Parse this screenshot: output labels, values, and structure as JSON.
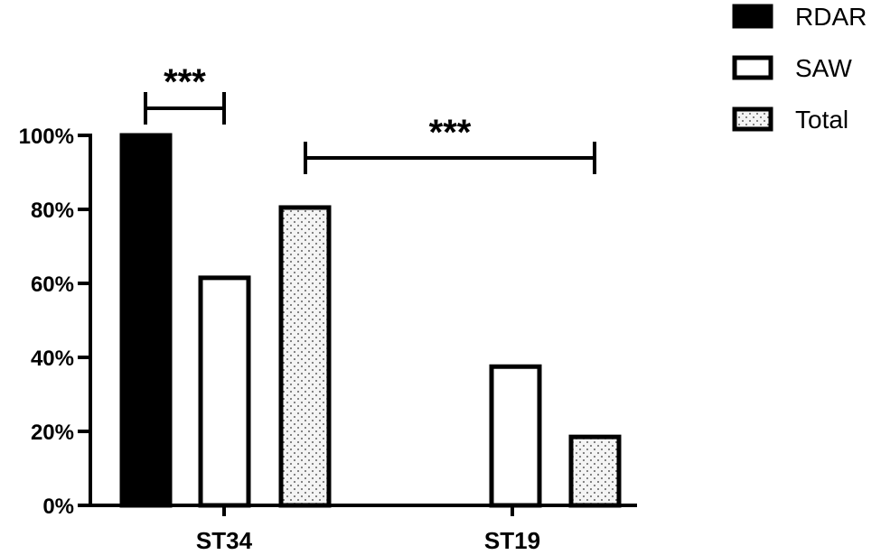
{
  "chart_data": {
    "type": "bar",
    "categories": [
      "ST34",
      "ST19"
    ],
    "series": [
      {
        "name": "RDAR",
        "values": [
          100,
          0
        ],
        "pattern": "solid"
      },
      {
        "name": "SAW",
        "values": [
          61.5,
          37.5
        ],
        "pattern": "empty"
      },
      {
        "name": "Total",
        "values": [
          80.5,
          18.5
        ],
        "pattern": "dots"
      }
    ],
    "y_ticks": [
      0,
      20,
      40,
      60,
      80,
      100
    ],
    "y_tick_labels": [
      "0%",
      "20%",
      "40%",
      "60%",
      "80%",
      "100%"
    ],
    "ylim": [
      0,
      100
    ],
    "legend_position": "top-right",
    "significance": [
      {
        "label": "***",
        "between": "RDAR vs SAW within ST34"
      },
      {
        "label": "***",
        "between": "ST34 Total vs ST19 Total"
      }
    ],
    "colors": {
      "ink": "#000000",
      "fill_empty": "#ffffff",
      "fill_dots": "#f4f4f4"
    }
  }
}
